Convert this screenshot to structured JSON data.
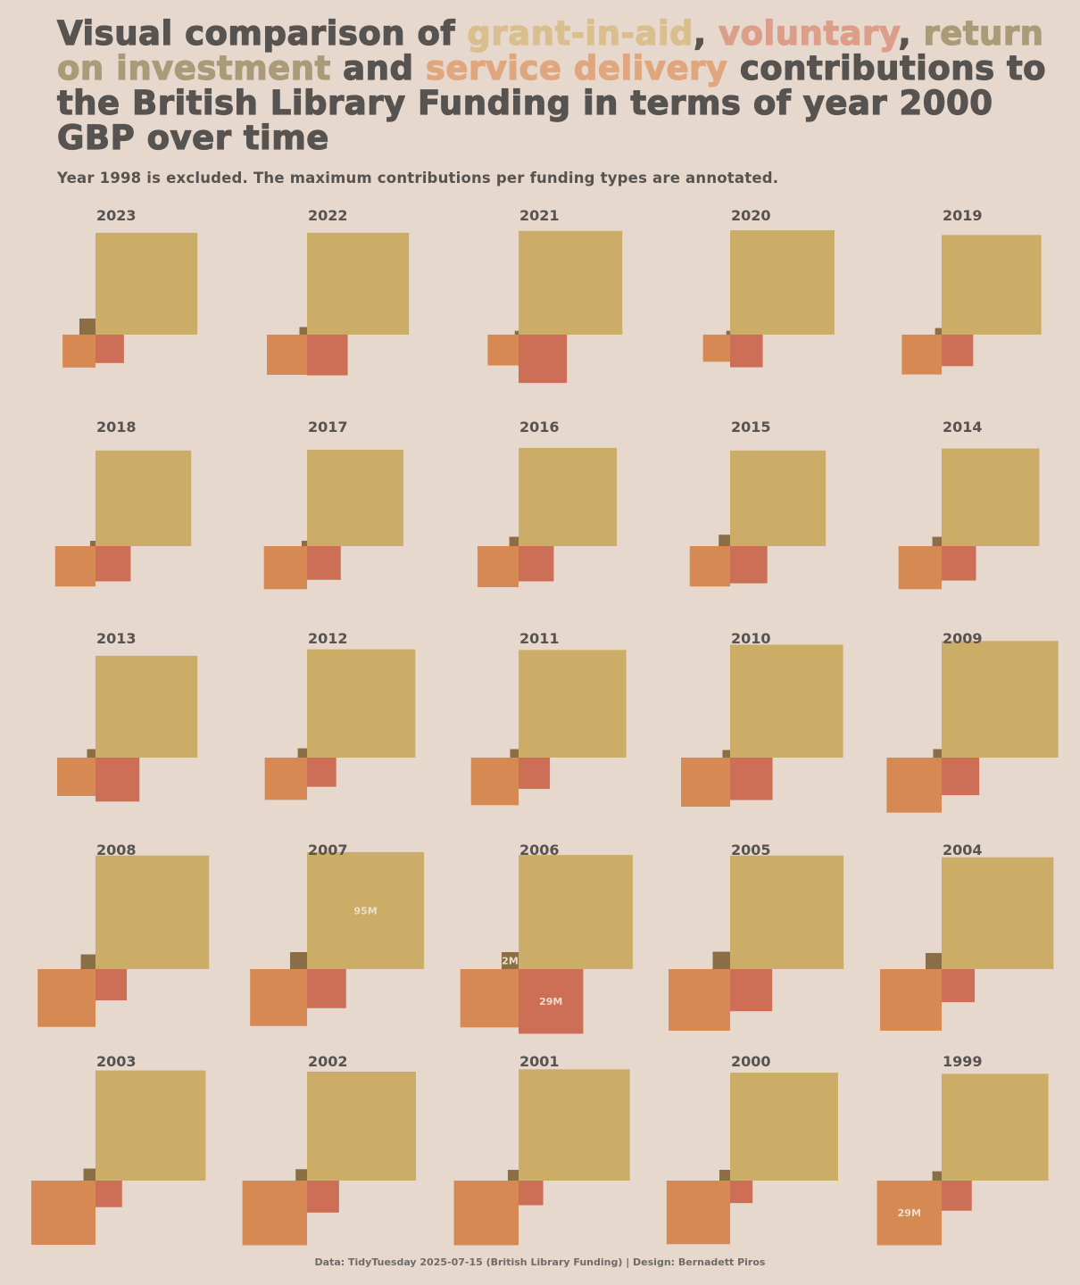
{
  "title": {
    "p1": "Visual comparison of ",
    "gia": "grant-in-aid",
    "comma1": ", ",
    "vol": "voluntary",
    "comma2": ",",
    "roi": "return on investment",
    "and": " and ",
    "svc": "service delivery",
    "p2": " contributions to the British Library Funding in terms of year 2000 GBP over time"
  },
  "subtitle": "Year 1998 is excluded. The maximum contributions per funding types are annotated.",
  "caption": "Data: TidyTuesday 2025-07-15 (British Library Funding) | Design: Bernadett Piros",
  "colors": {
    "background": "#e6d8cd",
    "text": "#575350",
    "gia_title": "#d9bf8e",
    "vol_title": "#dc9e88",
    "roi_title": "#ab9a78",
    "svc_title": "#e0a67e",
    "gia_fill": "#cbad67",
    "vol_fill": "#cc6f56",
    "roi_fill": "#8b6e43",
    "svc_fill": "#d68952"
  },
  "chart_data": {
    "type": "square-area small multiples (squares scaled by contribution, million GBP in year 2000 prices)",
    "unit": "M GBP",
    "legend_order": [
      "gia",
      "vol",
      "roi",
      "svc"
    ],
    "years": [
      2023,
      2022,
      2021,
      2020,
      2019,
      2018,
      2017,
      2016,
      2015,
      2014,
      2013,
      2012,
      2011,
      2010,
      2009,
      2008,
      2007,
      2006,
      2005,
      2004,
      2003,
      2002,
      2001,
      2000,
      1999
    ],
    "gia": [
      72.0,
      72.0,
      74.7,
      75.6,
      68.9,
      63.5,
      64.4,
      67.0,
      63.5,
      66.2,
      72.0,
      81.4,
      80.5,
      88.6,
      94.5,
      89.5,
      95.0,
      90.4,
      89.5,
      86.8,
      84.2,
      82.3,
      86.0,
      80.9,
      79.1
    ],
    "vol": [
      5.6,
      11.5,
      16.2,
      7.4,
      6.9,
      8.6,
      7.9,
      8.6,
      9.6,
      8.2,
      13.4,
      5.9,
      6.8,
      12.5,
      9.8,
      6.8,
      10.6,
      29.0,
      12.3,
      7.6,
      4.9,
      7.1,
      4.2,
      3.5,
      6.3
    ],
    "roi": [
      1.8,
      0.4,
      0.1,
      0.1,
      0.3,
      0.2,
      0.2,
      0.6,
      0.9,
      0.6,
      0.5,
      0.6,
      0.5,
      0.4,
      0.5,
      1.5,
      2.0,
      2.0,
      2.1,
      1.8,
      1.0,
      0.9,
      0.8,
      0.8,
      0.6
    ],
    "svc": [
      7.5,
      11.2,
      6.6,
      5.1,
      11.0,
      11.3,
      12.9,
      11.7,
      11.3,
      12.9,
      10.2,
      12.4,
      15.7,
      16.7,
      21.0,
      23.2,
      22.5,
      23.6,
      26.3,
      26.3,
      28.6,
      29.0,
      29.0,
      28.0,
      29.0
    ],
    "annotations": [
      {
        "year": 2007,
        "key": "gia",
        "label": "95M"
      },
      {
        "year": 2006,
        "key": "roi",
        "label": "2M"
      },
      {
        "year": 2006,
        "key": "vol",
        "label": "29M"
      },
      {
        "year": 1999,
        "key": "svc",
        "label": "29M"
      }
    ]
  }
}
